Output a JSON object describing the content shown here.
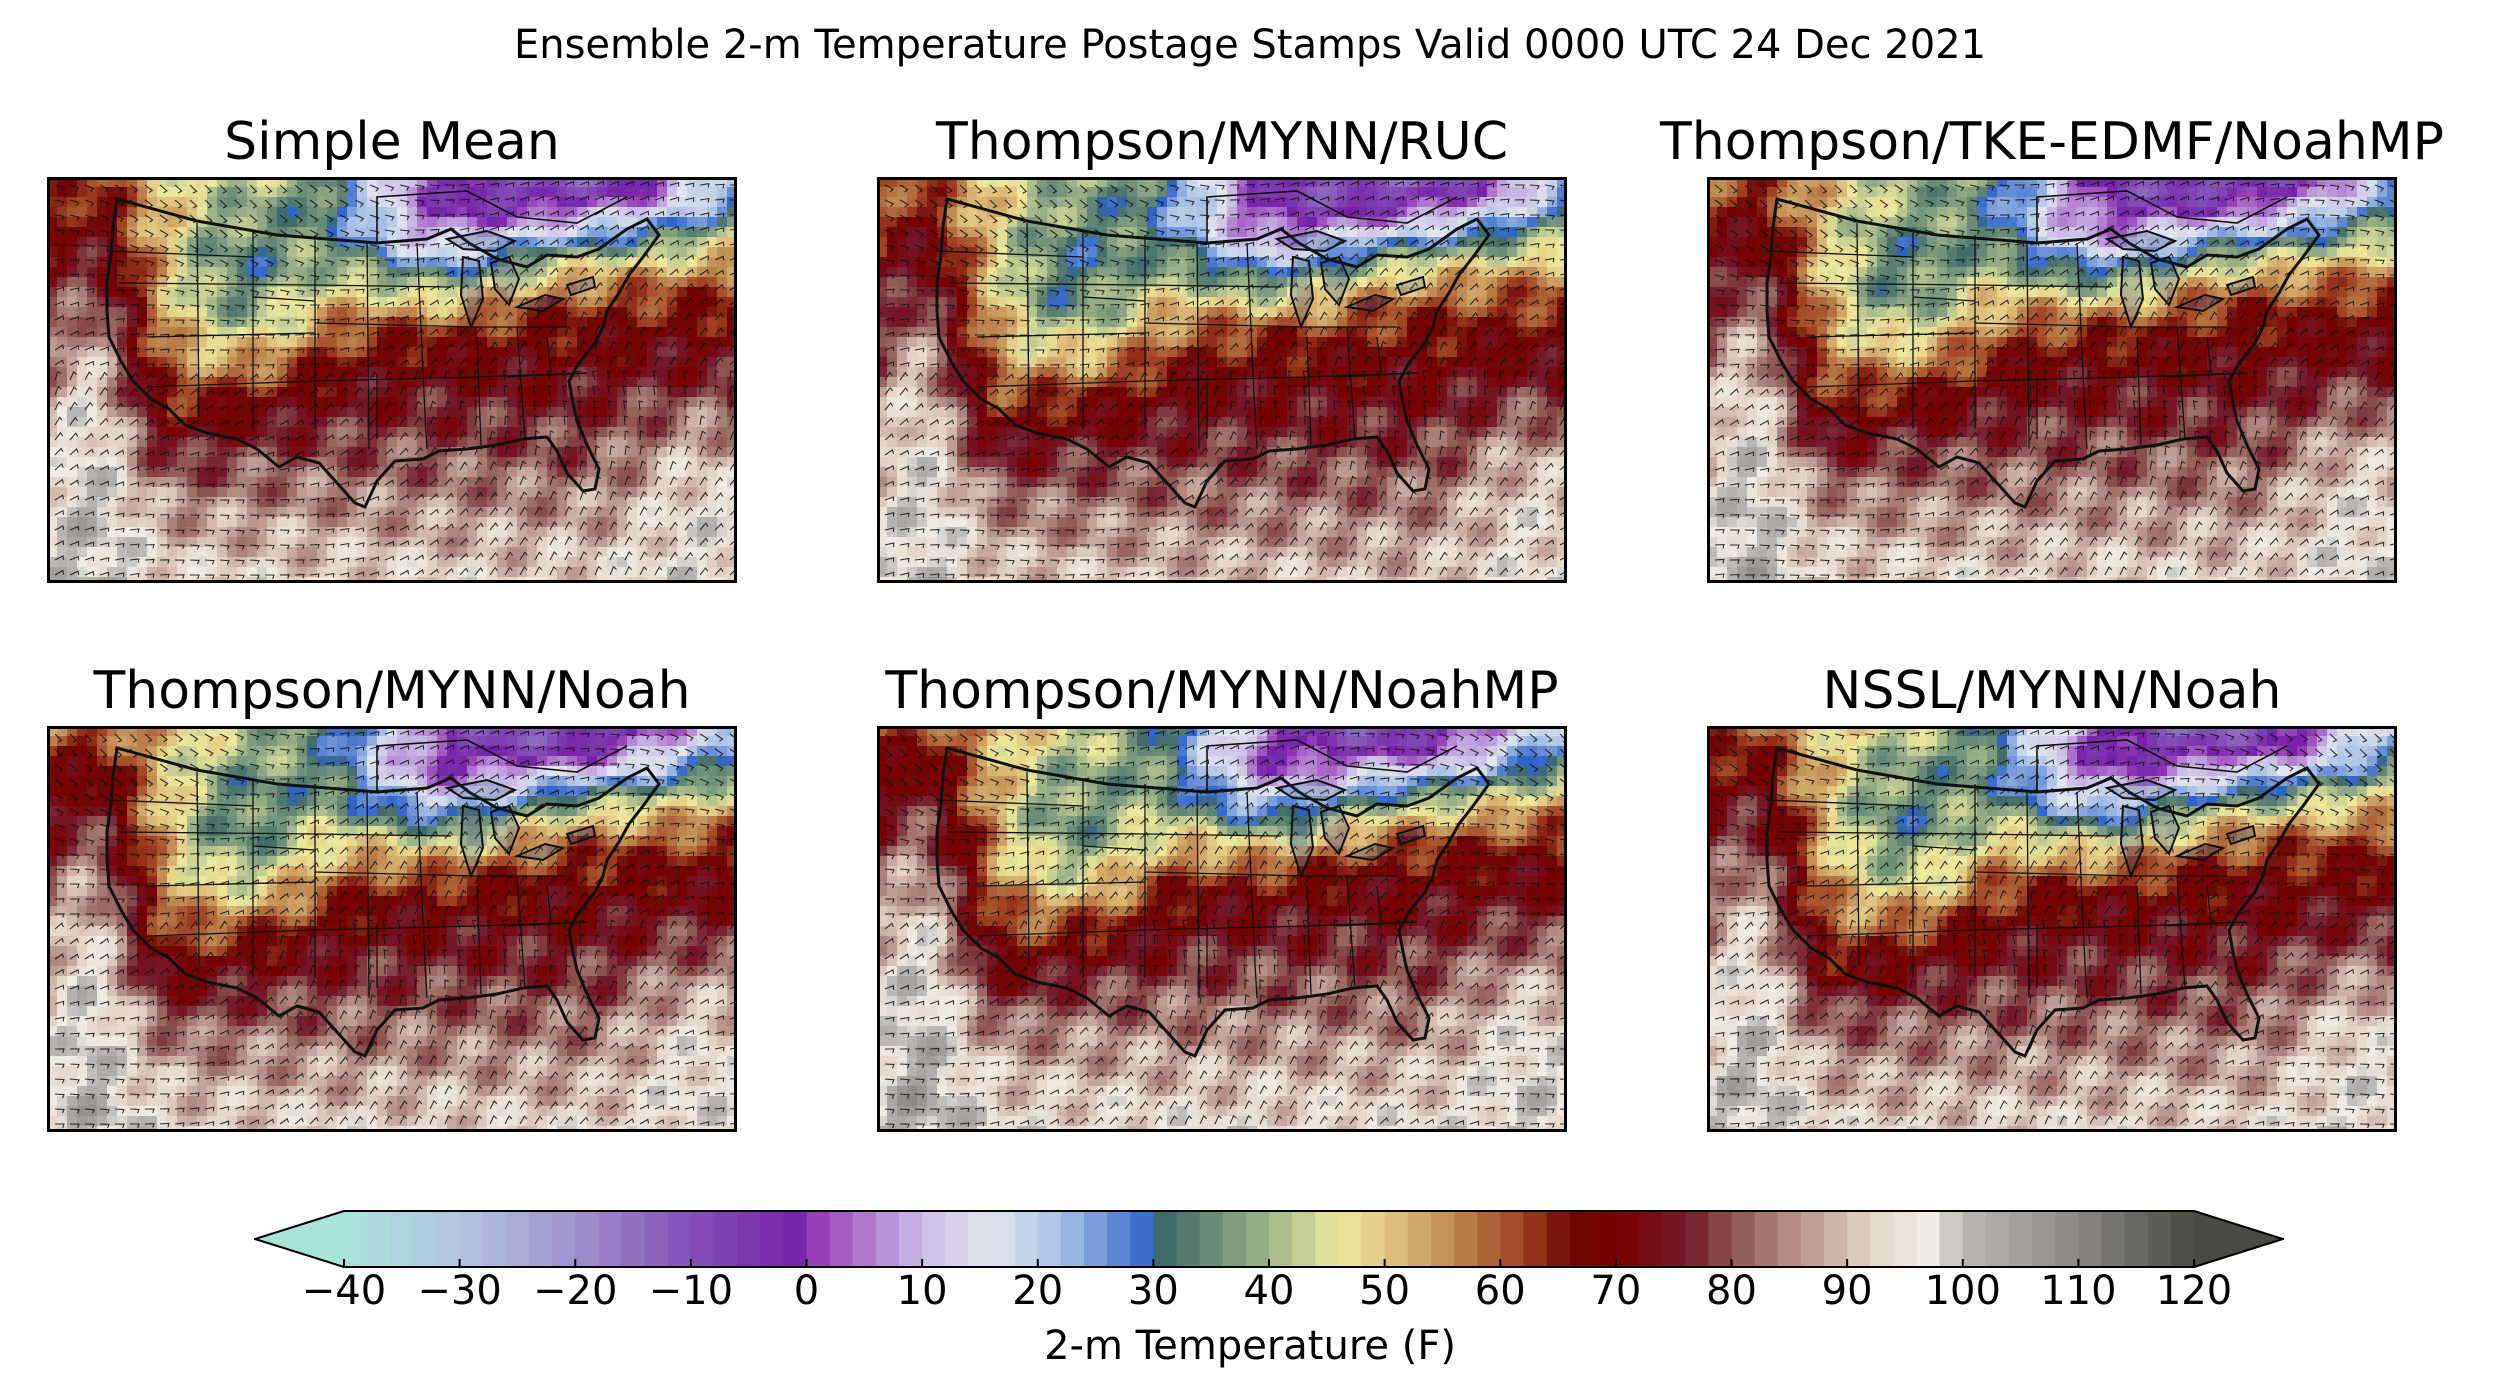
{
  "figure": {
    "title": "Ensemble 2-m Temperature Postage Stamps Valid 0000 UTC 24 Dec 2021"
  },
  "panels": [
    {
      "title": "Simple Mean"
    },
    {
      "title": "Thompson/MYNN/RUC"
    },
    {
      "title": "Thompson/TKE-EDMF/NoahMP"
    },
    {
      "title": "Thompson/MYNN/Noah"
    },
    {
      "title": "Thompson/MYNN/NoahMP"
    },
    {
      "title": "NSSL/MYNN/Noah"
    }
  ],
  "colorbar": {
    "label": "2-m Temperature (F)",
    "min": -40,
    "max": 120,
    "step": 2,
    "extend": "both",
    "ticks": [
      "−40",
      "−30",
      "−20",
      "−10",
      "0",
      "10",
      "20",
      "30",
      "40",
      "50",
      "60",
      "70",
      "80",
      "90",
      "100",
      "110",
      "120"
    ],
    "color_stops": [
      {
        "value": -40,
        "color": "#a6e4d8"
      },
      {
        "value": -30,
        "color": "#b4c4e0"
      },
      {
        "value": -20,
        "color": "#9f91cc"
      },
      {
        "value": -10,
        "color": "#8350b8"
      },
      {
        "value": 0,
        "color": "#7620a8"
      },
      {
        "value": 1,
        "color": "#9640b8"
      },
      {
        "value": 10,
        "color": "#cbbde6"
      },
      {
        "value": 16,
        "color": "#e2e6ee"
      },
      {
        "value": 22,
        "color": "#a8bfe4"
      },
      {
        "value": 30,
        "color": "#2e64c8"
      },
      {
        "value": 31,
        "color": "#3f6b6a"
      },
      {
        "value": 40,
        "color": "#a0b48a"
      },
      {
        "value": 46,
        "color": "#ece99c"
      },
      {
        "value": 50,
        "color": "#e2c882"
      },
      {
        "value": 56,
        "color": "#be8850"
      },
      {
        "value": 62,
        "color": "#a04020"
      },
      {
        "value": 66,
        "color": "#6e0808"
      },
      {
        "value": 70,
        "color": "#780000"
      },
      {
        "value": 76,
        "color": "#74182c"
      },
      {
        "value": 80,
        "color": "#8c5450"
      },
      {
        "value": 86,
        "color": "#b8968e"
      },
      {
        "value": 92,
        "color": "#e4d4c8"
      },
      {
        "value": 97,
        "color": "#f0ece4"
      },
      {
        "value": 100,
        "color": "#bcb8b6"
      },
      {
        "value": 110,
        "color": "#8a8684"
      },
      {
        "value": 120,
        "color": "#484a44"
      }
    ]
  },
  "colors": {
    "frame": "#000000",
    "boundaries": "#111111"
  },
  "map_layers": [
    "2-m temperature shading",
    "10-m wind barbs",
    "state and national boundaries",
    "coastlines"
  ]
}
